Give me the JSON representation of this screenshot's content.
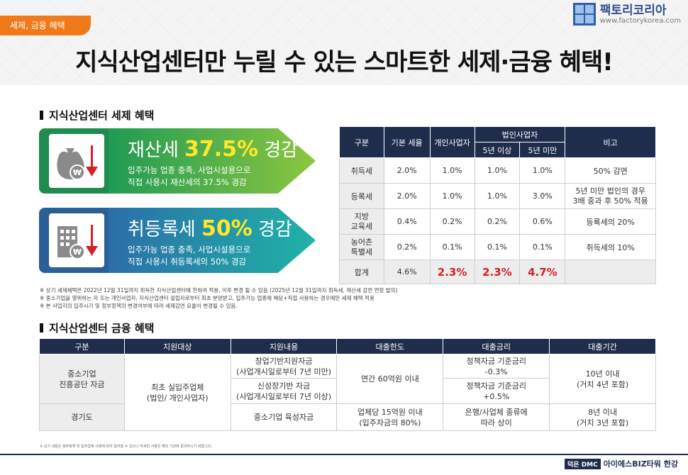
{
  "header": {
    "category": "세제, 금융 혜택",
    "brand_name": "팩토리코리아",
    "brand_url": "www.factorykorea.com",
    "title": "지식산업센터만 누릴 수 있는 스마트한 세제·금융 혜택!"
  },
  "tax_section": {
    "title": "지식산업센터 세제 혜택",
    "banners": [
      {
        "head_prefix": "재산세 ",
        "pct": "37.5%",
        "head_suffix": " 경감",
        "line1": "입주가능 업종 충족, 사업시설용으로",
        "line2": "직접 사용시 재산세의 37.5% 경감",
        "icon": "money-bag-won-icon"
      },
      {
        "head_prefix": "취등록세 ",
        "pct": "50%",
        "head_suffix": " 경감",
        "line1": "입주가능 업종 충족, 사업시설용으로",
        "line2": "직접 사용시 취등록세의 50% 경감",
        "icon": "building-won-icon"
      }
    ],
    "table": {
      "headers": {
        "category": "구분",
        "base_rate": "기본 세율",
        "individual": "개인사업자",
        "corporate": "법인사업자",
        "over5": "5년 이상",
        "under5": "5년 미만",
        "note": "비고"
      },
      "rows": [
        {
          "label": "취득세",
          "base": "2.0%",
          "individual": "1.0%",
          "over5": "1.0%",
          "under5": "1.0%",
          "note": "50% 감면"
        },
        {
          "label": "등록세",
          "base": "2.0%",
          "individual": "1.0%",
          "over5": "1.0%",
          "under5": "3.0%",
          "note": "5년 미만 법인의 경우\n3배 중과 후 50% 적용"
        },
        {
          "label": "지방\n교육세",
          "base": "0.4%",
          "individual": "0.2%",
          "over5": "0.2%",
          "under5": "0.6%",
          "note": "등록세의 20%"
        },
        {
          "label": "농어촌\n특별세",
          "base": "0.2%",
          "individual": "0.1%",
          "over5": "0.1%",
          "under5": "0.1%",
          "note": "취득세의 10%"
        },
        {
          "label": "합계",
          "base": "4.6%",
          "individual": "2.3%",
          "over5": "2.3%",
          "under5": "4.7%",
          "note": ""
        }
      ]
    },
    "notes": [
      "※ 상기 세제혜택은 2022년 12월 31일까지 취득한 지식산업센터에 한하여 적용, 이후 변경 될 수 있음 (2025년 12월 31일까지 취득세, 재산세 감면 연장 발의)",
      "※ 중소기업을 영위하는 자 또는 개인사업자, 지식산업센터 설립자로부터 최초 분양받고, 입주가능 업종에 해당+직접 사용하는 경우에만 세제 혜택 적용",
      "※ 본 사업지의 입주시기 및 정부정책의 변경여부에 따라 세제감면 요율이 변경될 수 있음."
    ]
  },
  "finance_section": {
    "title": "지식산업센터 금융 혜택",
    "headers": [
      "구분",
      "지원대상",
      "지원내용",
      "대출한도",
      "대출금리",
      "대출기간"
    ],
    "sbc": "중소기업\n진흥공단 자금",
    "gyeonggi": "경기도",
    "target": "최초 실입주업체\n(법인/ 개인사업자)",
    "content1": "창업기반지원자금\n(사업개시일로부터 7년 미만)",
    "content2": "신성장기반 자금\n(사업개시일로부터 7년 이상)",
    "content3": "중소기업 육성자금",
    "limit1": "연간 60억원 이내",
    "limit2": "업체당 15억원 이내\n(입주자금의 80%)",
    "rate1": "정책자금 기준금리\n-0.3%",
    "rate2": "정책자금 기준금리\n+0.5%",
    "rate3": "은행/사업체 종류에\n따라 상이",
    "period1": "10년 이내\n(거치 4년 포함)",
    "period2": "8년 이내\n(거치 3년 포함)"
  },
  "footer": {
    "note": "※ 상기 내용은 정부정책 및 입주업체 사정에 따라 달라질 수 있으니 자세한 사항은 해당 기관에 문의하시기 바랍니다.",
    "badge": "덕은 DMC",
    "name": "아이에스BIZ타워 한강"
  },
  "colors": {
    "accent_orange": "#f07a1a",
    "navy": "#1f2d4d",
    "highlight_red": "#d81f26",
    "yellow": "#ffe82c"
  }
}
